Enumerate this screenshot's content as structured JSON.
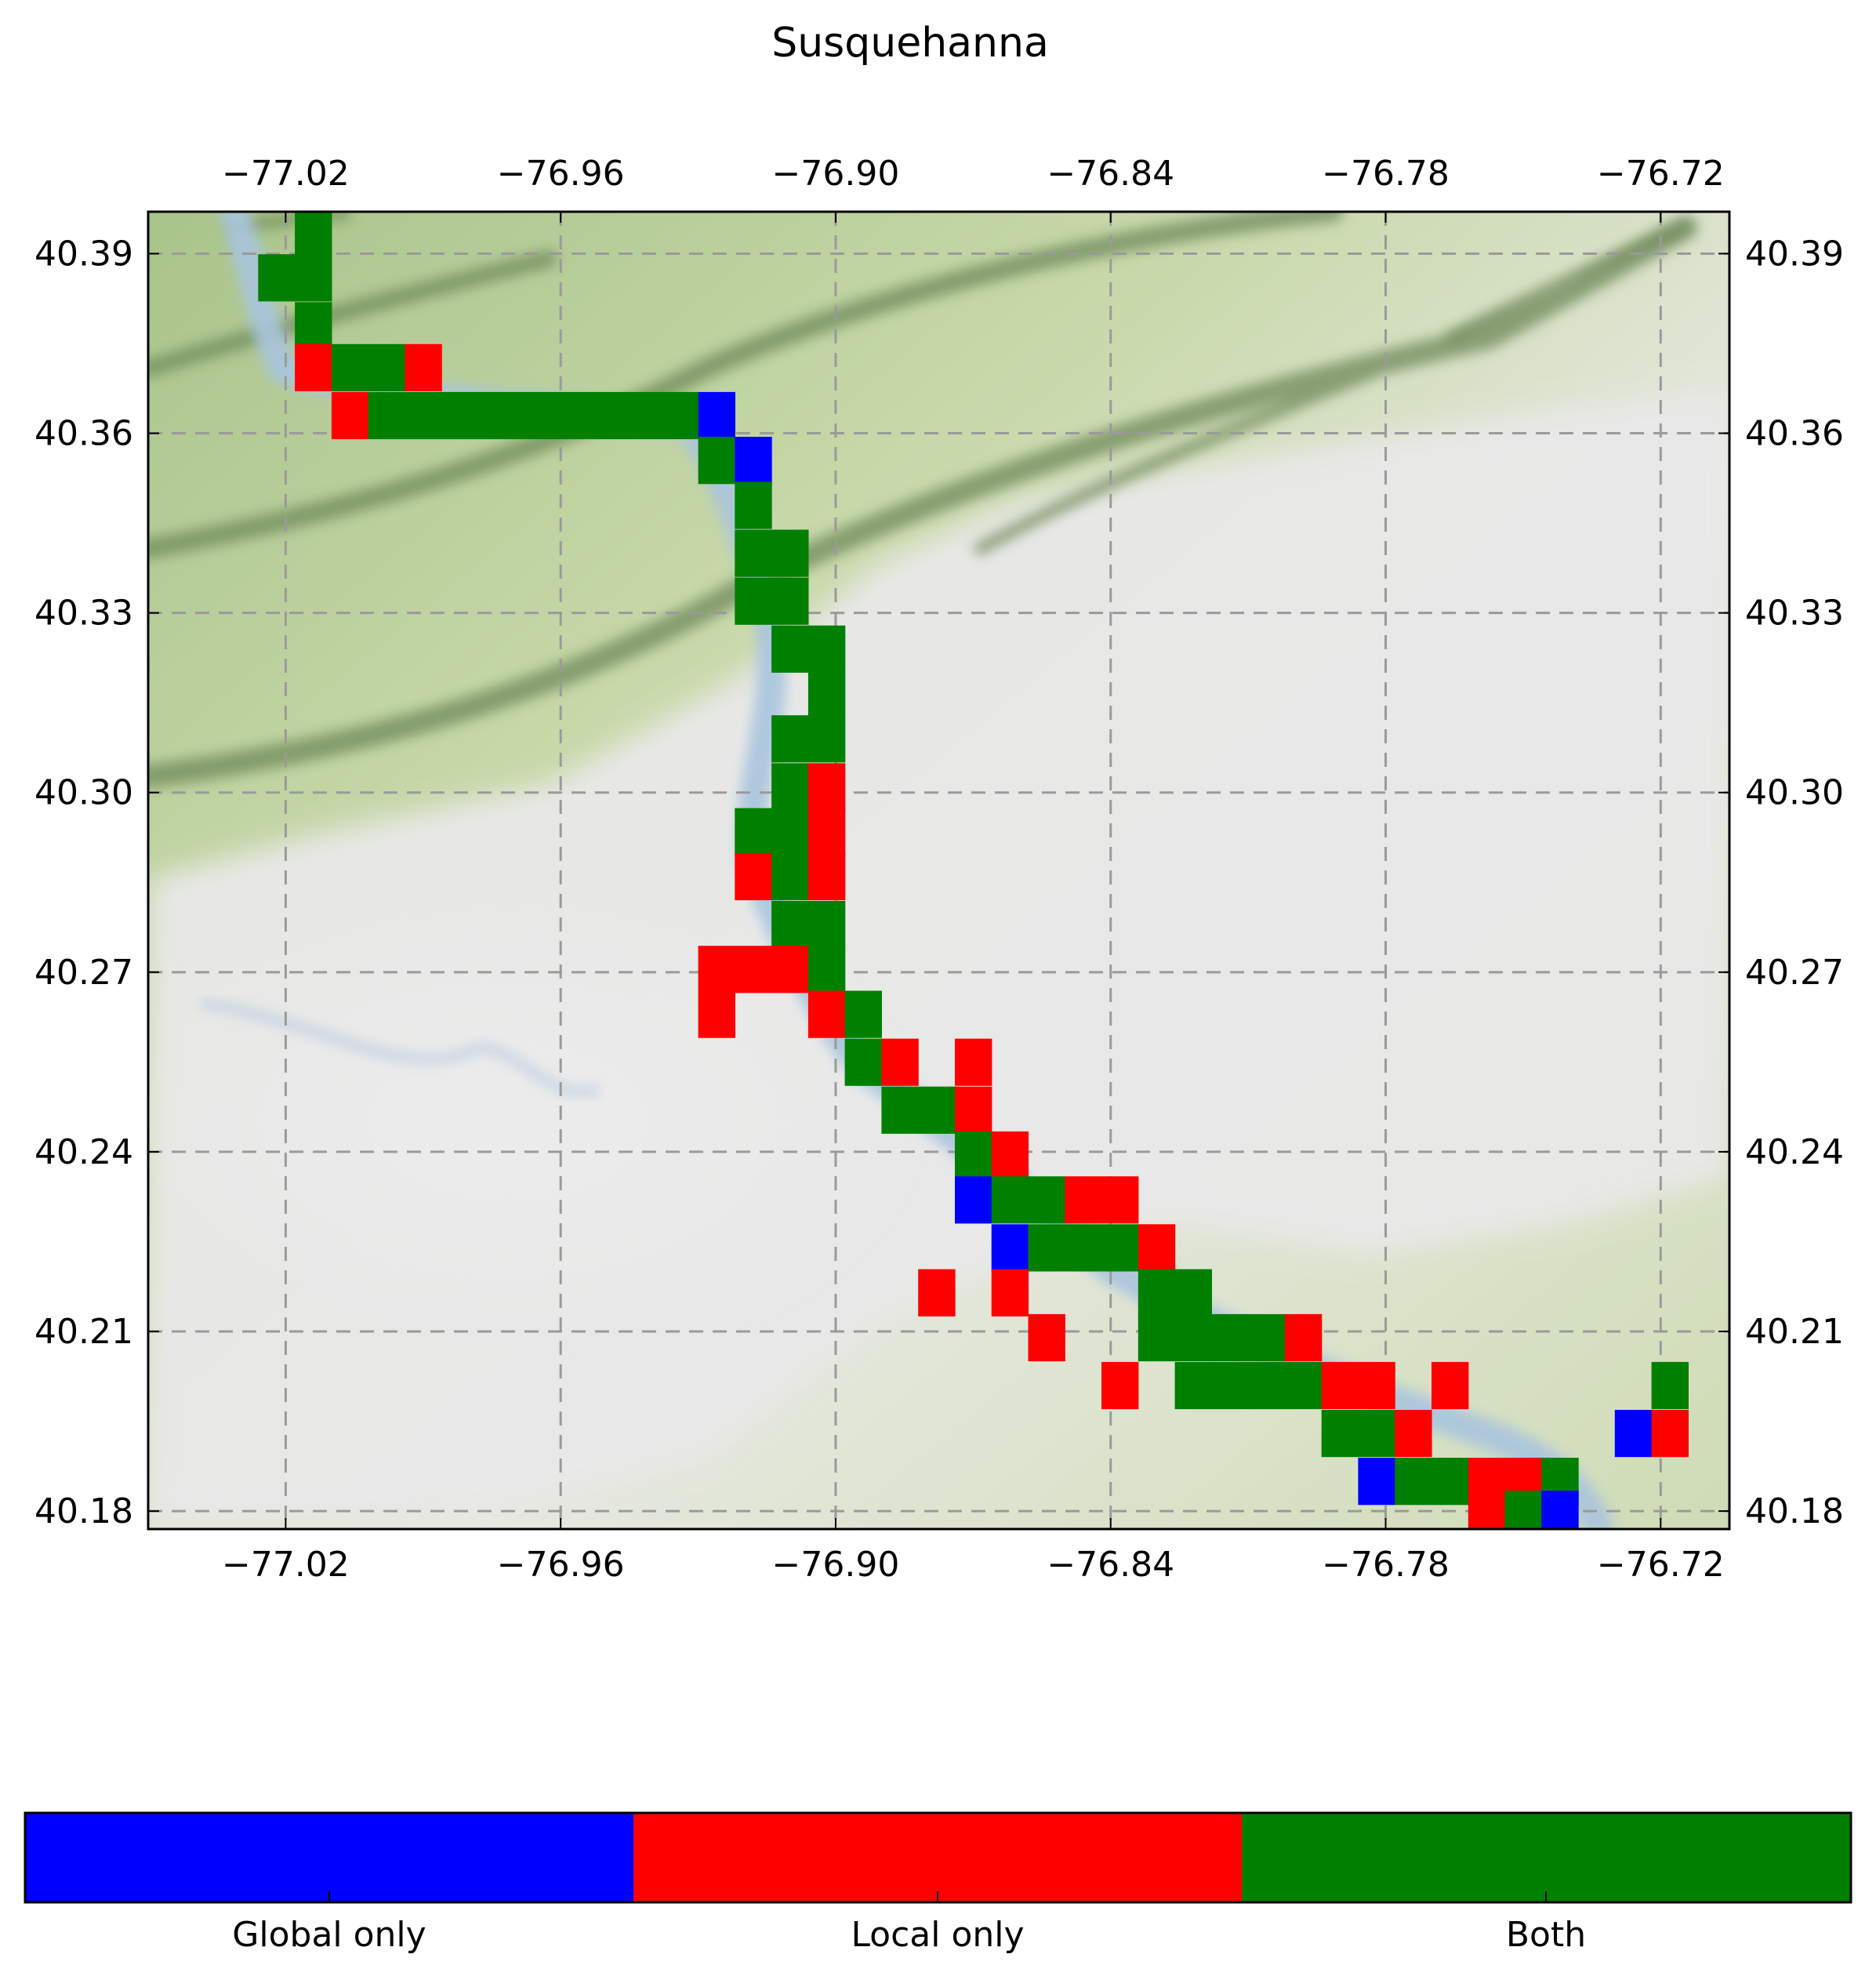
{
  "title": "Susquehanna",
  "chart_data": {
    "type": "heatmap",
    "title": "Susquehanna",
    "xlabel": "",
    "ylabel": "",
    "xlim": [
      -77.05,
      -76.705
    ],
    "ylim": [
      40.177,
      40.397
    ],
    "x_ticks": [
      -77.02,
      -76.96,
      -76.9,
      -76.84,
      -76.78,
      -76.72
    ],
    "x_tick_labels": [
      "−77.02",
      "−76.96",
      "−76.90",
      "−76.84",
      "−76.78",
      "−76.72"
    ],
    "y_ticks": [
      40.39,
      40.36,
      40.33,
      40.3,
      40.27,
      40.24,
      40.21,
      40.18
    ],
    "y_tick_labels": [
      "40.39",
      "40.36",
      "40.33",
      "40.30",
      "40.27",
      "40.24",
      "40.21",
      "40.18"
    ],
    "grid": true,
    "basemap": "terrain",
    "cell_size_deg": [
      0.008,
      0.0078
    ],
    "categories": [
      "Global only",
      "Local only",
      "Both"
    ],
    "category_colors": {
      "G": "#0000ff",
      "L": "#ff0000",
      "B": "#008000"
    },
    "cells": [
      {
        "lon": -77.022,
        "lat": 40.386,
        "cls": "B"
      },
      {
        "lon": -77.014,
        "lat": 40.386,
        "cls": "B"
      },
      {
        "lon": -77.014,
        "lat": 40.3935,
        "cls": "B"
      },
      {
        "lon": -77.014,
        "lat": 40.378,
        "cls": "B"
      },
      {
        "lon": -77.014,
        "lat": 40.371,
        "cls": "L"
      },
      {
        "lon": -77.006,
        "lat": 40.371,
        "cls": "B"
      },
      {
        "lon": -76.998,
        "lat": 40.371,
        "cls": "B"
      },
      {
        "lon": -76.99,
        "lat": 40.371,
        "cls": "L"
      },
      {
        "lon": -77.006,
        "lat": 40.363,
        "cls": "L"
      },
      {
        "lon": -76.998,
        "lat": 40.363,
        "cls": "B"
      },
      {
        "lon": -76.99,
        "lat": 40.363,
        "cls": "B"
      },
      {
        "lon": -76.982,
        "lat": 40.363,
        "cls": "B"
      },
      {
        "lon": -76.974,
        "lat": 40.363,
        "cls": "B"
      },
      {
        "lon": -76.966,
        "lat": 40.363,
        "cls": "B"
      },
      {
        "lon": -76.958,
        "lat": 40.363,
        "cls": "B"
      },
      {
        "lon": -76.95,
        "lat": 40.363,
        "cls": "B"
      },
      {
        "lon": -76.942,
        "lat": 40.363,
        "cls": "B"
      },
      {
        "lon": -76.934,
        "lat": 40.363,
        "cls": "B"
      },
      {
        "lon": -76.926,
        "lat": 40.363,
        "cls": "G"
      },
      {
        "lon": -76.926,
        "lat": 40.3555,
        "cls": "B"
      },
      {
        "lon": -76.918,
        "lat": 40.3555,
        "cls": "G"
      },
      {
        "lon": -76.918,
        "lat": 40.348,
        "cls": "B"
      },
      {
        "lon": -76.918,
        "lat": 40.34,
        "cls": "B"
      },
      {
        "lon": -76.91,
        "lat": 40.34,
        "cls": "B"
      },
      {
        "lon": -76.918,
        "lat": 40.332,
        "cls": "B"
      },
      {
        "lon": -76.91,
        "lat": 40.332,
        "cls": "B"
      },
      {
        "lon": -76.91,
        "lat": 40.324,
        "cls": "B"
      },
      {
        "lon": -76.902,
        "lat": 40.324,
        "cls": "B"
      },
      {
        "lon": -76.902,
        "lat": 40.3165,
        "cls": "B"
      },
      {
        "lon": -76.91,
        "lat": 40.309,
        "cls": "B"
      },
      {
        "lon": -76.902,
        "lat": 40.309,
        "cls": "B"
      },
      {
        "lon": -76.91,
        "lat": 40.301,
        "cls": "B"
      },
      {
        "lon": -76.902,
        "lat": 40.301,
        "cls": "L"
      },
      {
        "lon": -76.918,
        "lat": 40.2935,
        "cls": "B"
      },
      {
        "lon": -76.91,
        "lat": 40.2935,
        "cls": "B"
      },
      {
        "lon": -76.902,
        "lat": 40.2935,
        "cls": "L"
      },
      {
        "lon": -76.918,
        "lat": 40.286,
        "cls": "L"
      },
      {
        "lon": -76.91,
        "lat": 40.286,
        "cls": "B"
      },
      {
        "lon": -76.902,
        "lat": 40.286,
        "cls": "L"
      },
      {
        "lon": -76.91,
        "lat": 40.278,
        "cls": "B"
      },
      {
        "lon": -76.902,
        "lat": 40.278,
        "cls": "B"
      },
      {
        "lon": -76.926,
        "lat": 40.2705,
        "cls": "L"
      },
      {
        "lon": -76.918,
        "lat": 40.2705,
        "cls": "L"
      },
      {
        "lon": -76.91,
        "lat": 40.2705,
        "cls": "L"
      },
      {
        "lon": -76.902,
        "lat": 40.2705,
        "cls": "B"
      },
      {
        "lon": -76.926,
        "lat": 40.263,
        "cls": "L"
      },
      {
        "lon": -76.902,
        "lat": 40.263,
        "cls": "L"
      },
      {
        "lon": -76.894,
        "lat": 40.263,
        "cls": "B"
      },
      {
        "lon": -76.894,
        "lat": 40.255,
        "cls": "B"
      },
      {
        "lon": -76.886,
        "lat": 40.255,
        "cls": "L"
      },
      {
        "lon": -76.87,
        "lat": 40.255,
        "cls": "L"
      },
      {
        "lon": -76.886,
        "lat": 40.247,
        "cls": "B"
      },
      {
        "lon": -76.878,
        "lat": 40.247,
        "cls": "B"
      },
      {
        "lon": -76.87,
        "lat": 40.247,
        "cls": "L"
      },
      {
        "lon": -76.87,
        "lat": 40.2395,
        "cls": "B"
      },
      {
        "lon": -76.862,
        "lat": 40.2395,
        "cls": "L"
      },
      {
        "lon": -76.87,
        "lat": 40.232,
        "cls": "G"
      },
      {
        "lon": -76.862,
        "lat": 40.232,
        "cls": "B"
      },
      {
        "lon": -76.854,
        "lat": 40.232,
        "cls": "B"
      },
      {
        "lon": -76.846,
        "lat": 40.232,
        "cls": "L"
      },
      {
        "lon": -76.838,
        "lat": 40.232,
        "cls": "L"
      },
      {
        "lon": -76.862,
        "lat": 40.224,
        "cls": "G"
      },
      {
        "lon": -76.854,
        "lat": 40.224,
        "cls": "B"
      },
      {
        "lon": -76.846,
        "lat": 40.224,
        "cls": "B"
      },
      {
        "lon": -76.838,
        "lat": 40.224,
        "cls": "B"
      },
      {
        "lon": -76.83,
        "lat": 40.224,
        "cls": "L"
      },
      {
        "lon": -76.878,
        "lat": 40.2165,
        "cls": "L"
      },
      {
        "lon": -76.862,
        "lat": 40.2165,
        "cls": "L"
      },
      {
        "lon": -76.83,
        "lat": 40.2165,
        "cls": "B"
      },
      {
        "lon": -76.822,
        "lat": 40.2165,
        "cls": "B"
      },
      {
        "lon": -76.83,
        "lat": 40.209,
        "cls": "B"
      },
      {
        "lon": -76.822,
        "lat": 40.209,
        "cls": "B"
      },
      {
        "lon": -76.814,
        "lat": 40.209,
        "cls": "B"
      },
      {
        "lon": -76.806,
        "lat": 40.209,
        "cls": "B"
      },
      {
        "lon": -76.854,
        "lat": 40.209,
        "cls": "L"
      },
      {
        "lon": -76.798,
        "lat": 40.209,
        "cls": "L"
      },
      {
        "lon": -76.838,
        "lat": 40.201,
        "cls": "L"
      },
      {
        "lon": -76.822,
        "lat": 40.201,
        "cls": "B"
      },
      {
        "lon": -76.814,
        "lat": 40.201,
        "cls": "B"
      },
      {
        "lon": -76.806,
        "lat": 40.201,
        "cls": "B"
      },
      {
        "lon": -76.798,
        "lat": 40.201,
        "cls": "B"
      },
      {
        "lon": -76.79,
        "lat": 40.201,
        "cls": "L"
      },
      {
        "lon": -76.782,
        "lat": 40.201,
        "cls": "L"
      },
      {
        "lon": -76.766,
        "lat": 40.201,
        "cls": "L"
      },
      {
        "lon": -76.718,
        "lat": 40.201,
        "cls": "B"
      },
      {
        "lon": -76.79,
        "lat": 40.193,
        "cls": "B"
      },
      {
        "lon": -76.782,
        "lat": 40.193,
        "cls": "B"
      },
      {
        "lon": -76.774,
        "lat": 40.193,
        "cls": "L"
      },
      {
        "lon": -76.726,
        "lat": 40.193,
        "cls": "G"
      },
      {
        "lon": -76.718,
        "lat": 40.193,
        "cls": "L"
      },
      {
        "lon": -76.782,
        "lat": 40.185,
        "cls": "G"
      },
      {
        "lon": -76.774,
        "lat": 40.185,
        "cls": "B"
      },
      {
        "lon": -76.766,
        "lat": 40.185,
        "cls": "B"
      },
      {
        "lon": -76.758,
        "lat": 40.185,
        "cls": "L"
      },
      {
        "lon": -76.75,
        "lat": 40.185,
        "cls": "L"
      },
      {
        "lon": -76.742,
        "lat": 40.185,
        "cls": "B"
      },
      {
        "lon": -76.758,
        "lat": 40.1795,
        "cls": "L"
      },
      {
        "lon": -76.75,
        "lat": 40.1795,
        "cls": "B"
      },
      {
        "lon": -76.742,
        "lat": 40.1795,
        "cls": "G"
      }
    ]
  },
  "colorbar": {
    "labels": [
      "Global only",
      "Local only",
      "Both"
    ],
    "colors": [
      "#0000ff",
      "#ff0000",
      "#008000"
    ]
  }
}
